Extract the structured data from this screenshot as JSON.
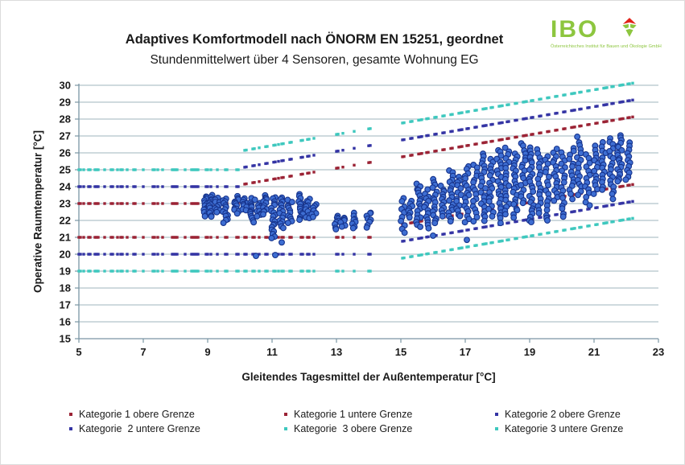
{
  "title": "Adaptives Komfortmodell nach ÖNORM EN 15251, geordnet",
  "subtitle": "Stundenmittelwert über 4 Sensoren, gesamte Wohnung EG",
  "logo": {
    "text": "IBO",
    "tagline": "Österreichisches Institut für Bauen und Ökologie GmbH",
    "color": "#8dc63f",
    "icon": "ibo-diamond-leaf"
  },
  "colors": {
    "kat1": "#9b2335",
    "kat2": "#3434a4",
    "kat3": "#3ec8be",
    "scatter_fill": "#3e6ed2",
    "scatter_stroke": "#16338c",
    "grid": "#9fb4be",
    "axis": "#7a95a3",
    "text": "#1a1a1a"
  },
  "chart_data": {
    "type": "scatter",
    "title": "Adaptives Komfortmodell nach ÖNORM EN 15251, geordnet",
    "subtitle": "Stundenmittelwert über 4 Sensoren, gesamte Wohnung EG",
    "xlabel": "Gleitendes Tagesmittel der Außentemperatur [°C]",
    "ylabel": "Operative Raumtemperatur [°C]",
    "xlim": [
      5,
      23
    ],
    "ylim": [
      15,
      30
    ],
    "x_ticks": [
      5,
      7,
      9,
      11,
      13,
      15,
      17,
      19,
      21,
      23
    ],
    "y_ticks": [
      15,
      16,
      17,
      18,
      19,
      20,
      21,
      22,
      23,
      24,
      25,
      26,
      27,
      28,
      29,
      30
    ],
    "grid": "horizontal",
    "legend_position": "bottom",
    "boundary_series": [
      {
        "name": "Kategorie 1 obere Grenze",
        "color": "#9b2335",
        "flat_value": 23,
        "threshold": 10,
        "slope": 0.33,
        "offset": 20.8
      },
      {
        "name": "Kategorie 1 untere Grenze",
        "color": "#9b2335",
        "flat_value": 21,
        "threshold": 15,
        "slope": 0.33,
        "offset": 16.8
      },
      {
        "name": "Kategorie 2 obere Grenze",
        "color": "#3434a4",
        "flat_value": 24,
        "threshold": 10,
        "slope": 0.33,
        "offset": 21.8
      },
      {
        "name": "Kategorie 2 untere Grenze",
        "color": "#3434a4",
        "flat_value": 20,
        "threshold": 15,
        "slope": 0.33,
        "offset": 15.8
      },
      {
        "name": "Kategorie 3 obere Grenze",
        "color": "#3ec8be",
        "flat_value": 25,
        "threshold": 10,
        "slope": 0.33,
        "offset": 22.8
      },
      {
        "name": "Kategorie 3 untere Grenze",
        "color": "#3ec8be",
        "flat_value": 19,
        "threshold": 15,
        "slope": 0.33,
        "offset": 14.8
      }
    ],
    "sample_x": [
      5.0,
      5.05,
      5.15,
      5.3,
      5.35,
      5.5,
      5.55,
      5.6,
      5.8,
      6.0,
      6.05,
      6.2,
      6.3,
      6.35,
      6.5,
      6.7,
      6.75,
      7.0,
      7.3,
      7.35,
      7.45,
      7.6,
      7.9,
      7.95,
      8.0,
      8.05,
      8.3,
      8.5,
      8.55,
      8.6,
      8.65,
      8.7,
      8.95,
      9.0,
      9.1,
      9.3,
      9.55,
      9.6,
      9.9,
      9.95,
      10.15,
      10.2,
      10.4,
      10.45,
      10.6,
      10.8,
      10.85,
      11.05,
      11.1,
      11.2,
      11.3,
      11.35,
      11.55,
      11.6,
      11.9,
      11.95,
      12.1,
      12.15,
      12.3,
      13.0,
      13.05,
      13.2,
      13.55,
      14.0,
      14.05,
      15.05,
      15.1,
      15.3,
      15.35,
      15.55,
      15.6,
      15.65,
      15.8,
      15.85,
      16.05,
      16.1,
      16.3,
      16.35,
      16.55,
      16.6,
      16.8,
      16.85,
      16.9,
      17.05,
      17.1,
      17.3,
      17.35,
      17.55,
      17.6,
      17.65,
      17.8,
      17.85,
      18.05,
      18.1,
      18.15,
      18.3,
      18.35,
      18.55,
      18.6,
      18.8,
      18.85,
      18.9,
      19.05,
      19.1,
      19.3,
      19.35,
      19.55,
      19.6,
      19.8,
      19.85,
      20.05,
      20.1,
      20.3,
      20.35,
      20.4,
      20.55,
      20.6,
      20.8,
      20.85,
      21.05,
      21.1,
      21.3,
      21.35,
      21.4,
      21.55,
      21.6,
      21.8,
      21.85,
      21.9,
      22.05,
      22.1,
      22.2
    ],
    "measurements": {
      "name": "Stundenmittelwerte Raumtemperatur",
      "marker": "circle",
      "fill": "#3e6ed2",
      "stroke": "#16338c",
      "clusters": [
        {
          "x": 8.95,
          "y_min": 22.3,
          "y_max": 23.4,
          "n": 16
        },
        {
          "x": 9.1,
          "y_min": 22.2,
          "y_max": 23.5,
          "n": 14
        },
        {
          "x": 9.3,
          "y_min": 22.5,
          "y_max": 23.3,
          "n": 10
        },
        {
          "x": 9.55,
          "y_min": 21.9,
          "y_max": 23.3,
          "n": 14
        },
        {
          "x": 9.9,
          "y_min": 22.4,
          "y_max": 23.4,
          "n": 12
        },
        {
          "x": 10.15,
          "y_min": 22.6,
          "y_max": 23.3,
          "n": 9
        },
        {
          "x": 10.4,
          "y_min": 21.9,
          "y_max": 23.3,
          "n": 14
        },
        {
          "x": 10.6,
          "y_min": 22.2,
          "y_max": 23.0,
          "n": 9
        },
        {
          "x": 10.8,
          "y_min": 22.4,
          "y_max": 23.5,
          "n": 12
        },
        {
          "x": 11.05,
          "y_min": 20.9,
          "y_max": 23.4,
          "n": 20
        },
        {
          "x": 11.3,
          "y_min": 21.5,
          "y_max": 23.4,
          "n": 16
        },
        {
          "x": 11.55,
          "y_min": 21.8,
          "y_max": 23.2,
          "n": 12
        },
        {
          "x": 11.9,
          "y_min": 22.0,
          "y_max": 23.5,
          "n": 14
        },
        {
          "x": 12.1,
          "y_min": 22.1,
          "y_max": 23.3,
          "n": 10
        },
        {
          "x": 12.3,
          "y_min": 22.2,
          "y_max": 23.0,
          "n": 7
        },
        {
          "x": 13.0,
          "y_min": 21.5,
          "y_max": 22.3,
          "n": 8
        },
        {
          "x": 13.2,
          "y_min": 21.6,
          "y_max": 22.2,
          "n": 6
        },
        {
          "x": 13.55,
          "y_min": 21.5,
          "y_max": 22.4,
          "n": 8
        },
        {
          "x": 14.0,
          "y_min": 21.6,
          "y_max": 22.5,
          "n": 8
        },
        {
          "x": 15.05,
          "y_min": 21.3,
          "y_max": 23.3,
          "n": 10
        },
        {
          "x": 15.3,
          "y_min": 22.2,
          "y_max": 23.1,
          "n": 8
        },
        {
          "x": 15.55,
          "y_min": 21.6,
          "y_max": 24.2,
          "n": 18
        },
        {
          "x": 15.8,
          "y_min": 21.5,
          "y_max": 23.8,
          "n": 14
        },
        {
          "x": 16.05,
          "y_min": 21.8,
          "y_max": 24.4,
          "n": 16
        },
        {
          "x": 16.3,
          "y_min": 22.3,
          "y_max": 24.0,
          "n": 12
        },
        {
          "x": 16.55,
          "y_min": 21.9,
          "y_max": 25.0,
          "n": 18
        },
        {
          "x": 16.8,
          "y_min": 22.2,
          "y_max": 24.6,
          "n": 14
        },
        {
          "x": 17.05,
          "y_min": 21.9,
          "y_max": 25.2,
          "n": 18
        },
        {
          "x": 17.3,
          "y_min": 22.0,
          "y_max": 25.3,
          "n": 16
        },
        {
          "x": 17.55,
          "y_min": 22.0,
          "y_max": 26.0,
          "n": 22
        },
        {
          "x": 17.8,
          "y_min": 22.3,
          "y_max": 25.6,
          "n": 18
        },
        {
          "x": 18.05,
          "y_min": 21.9,
          "y_max": 26.2,
          "n": 24
        },
        {
          "x": 18.3,
          "y_min": 22.4,
          "y_max": 26.3,
          "n": 20
        },
        {
          "x": 18.55,
          "y_min": 22.2,
          "y_max": 26.0,
          "n": 22
        },
        {
          "x": 18.8,
          "y_min": 23.0,
          "y_max": 26.6,
          "n": 18
        },
        {
          "x": 19.05,
          "y_min": 22.0,
          "y_max": 26.3,
          "n": 24
        },
        {
          "x": 19.3,
          "y_min": 22.4,
          "y_max": 26.2,
          "n": 18
        },
        {
          "x": 19.55,
          "y_min": 22.1,
          "y_max": 25.8,
          "n": 16
        },
        {
          "x": 19.8,
          "y_min": 23.2,
          "y_max": 26.2,
          "n": 16
        },
        {
          "x": 20.05,
          "y_min": 22.2,
          "y_max": 26.0,
          "n": 18
        },
        {
          "x": 20.3,
          "y_min": 23.3,
          "y_max": 26.3,
          "n": 14
        },
        {
          "x": 20.55,
          "y_min": 23.5,
          "y_max": 26.9,
          "n": 16
        },
        {
          "x": 20.8,
          "y_min": 22.9,
          "y_max": 25.9,
          "n": 14
        },
        {
          "x": 21.05,
          "y_min": 23.6,
          "y_max": 26.4,
          "n": 14
        },
        {
          "x": 21.3,
          "y_min": 23.8,
          "y_max": 26.6,
          "n": 14
        },
        {
          "x": 21.55,
          "y_min": 23.3,
          "y_max": 26.9,
          "n": 18
        },
        {
          "x": 21.8,
          "y_min": 24.3,
          "y_max": 27.0,
          "n": 20
        },
        {
          "x": 22.05,
          "y_min": 24.4,
          "y_max": 26.6,
          "n": 12
        }
      ],
      "singles": [
        [
          10.5,
          19.9
        ],
        [
          11.1,
          19.95
        ],
        [
          11.3,
          20.7
        ],
        [
          16.0,
          21.1
        ],
        [
          17.05,
          20.85
        ],
        [
          19.05,
          21.9
        ],
        [
          19.55,
          22.0
        ]
      ]
    }
  },
  "axes": {
    "x_label": "Gleitendes Tagesmittel der Außentemperatur [°C]",
    "y_label": "Operative Raumtemperatur [°C]"
  },
  "legend": {
    "items": [
      {
        "label": "Kategorie 1 obere Grenze",
        "color": "#9b2335"
      },
      {
        "label": "Kategorie 1 untere Grenze",
        "color": "#9b2335"
      },
      {
        "label": "Kategorie 2 obere Grenze",
        "color": "#3434a4"
      },
      {
        "label": "Kategorie  2 untere Grenze",
        "color": "#3434a4"
      },
      {
        "label": "Kategorie  3 obere Grenze",
        "color": "#3ec8be"
      },
      {
        "label": "Kategorie 3 untere Grenze",
        "color": "#3ec8be"
      }
    ]
  }
}
